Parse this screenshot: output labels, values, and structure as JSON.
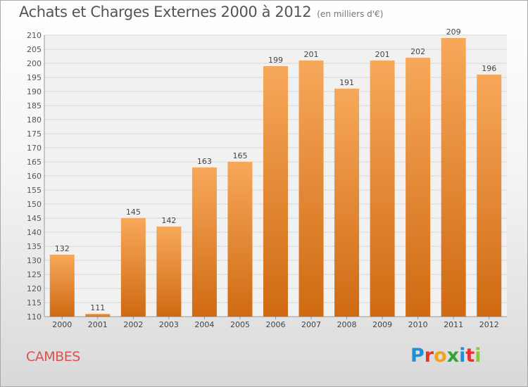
{
  "title": "Achats et Charges Externes 2000 à 2012",
  "subtitle": "(en milliers d'€)",
  "commune": "CAMBES",
  "logo": {
    "text": "Proxiti",
    "letters": [
      {
        "char": "P",
        "color": "#1f8fd6"
      },
      {
        "char": "r",
        "color": "#e8322f"
      },
      {
        "char": "o",
        "color": "#f2a31b"
      },
      {
        "char": "x",
        "color": "#36a335"
      },
      {
        "char": "i",
        "color": "#1f8fd6"
      },
      {
        "char": "t",
        "color": "#e8322f"
      },
      {
        "char": "i",
        "color": "#8cc63f"
      }
    ]
  },
  "colors": {
    "bar_top": "#f7a85a",
    "bar_bottom": "#cf6a12",
    "title": "#555555",
    "commune": "#d9534f"
  },
  "chart_data": {
    "type": "bar",
    "categories": [
      "2000",
      "2001",
      "2002",
      "2003",
      "2004",
      "2005",
      "2006",
      "2007",
      "2008",
      "2009",
      "2010",
      "2011",
      "2012"
    ],
    "values": [
      132,
      111,
      145,
      142,
      163,
      165,
      199,
      201,
      191,
      201,
      202,
      209,
      196
    ],
    "ylim": [
      110,
      210
    ],
    "yticks": [
      110,
      115,
      120,
      125,
      130,
      135,
      140,
      145,
      150,
      155,
      160,
      165,
      170,
      175,
      180,
      185,
      190,
      195,
      200,
      205,
      210
    ],
    "grid": true,
    "legend": "none"
  }
}
